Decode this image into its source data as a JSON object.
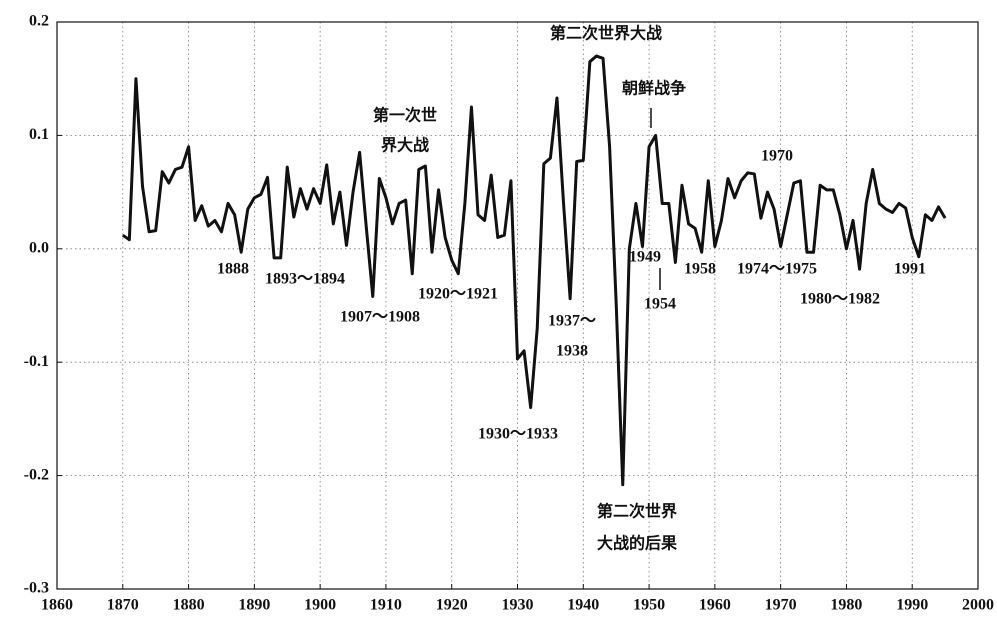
{
  "chart_data": {
    "type": "line",
    "x": [
      1870,
      1871,
      1872,
      1873,
      1874,
      1875,
      1876,
      1877,
      1878,
      1879,
      1880,
      1881,
      1882,
      1883,
      1884,
      1885,
      1886,
      1887,
      1888,
      1889,
      1890,
      1891,
      1892,
      1893,
      1894,
      1895,
      1896,
      1897,
      1898,
      1899,
      1900,
      1901,
      1902,
      1903,
      1904,
      1905,
      1906,
      1907,
      1908,
      1909,
      1910,
      1911,
      1912,
      1913,
      1914,
      1915,
      1916,
      1917,
      1918,
      1919,
      1920,
      1921,
      1922,
      1923,
      1924,
      1925,
      1926,
      1927,
      1928,
      1929,
      1930,
      1931,
      1932,
      1933,
      1934,
      1935,
      1936,
      1937,
      1938,
      1939,
      1940,
      1941,
      1942,
      1943,
      1944,
      1945,
      1946,
      1947,
      1948,
      1949,
      1950,
      1951,
      1952,
      1953,
      1954,
      1955,
      1956,
      1957,
      1958,
      1959,
      1960,
      1961,
      1962,
      1963,
      1964,
      1965,
      1966,
      1967,
      1968,
      1969,
      1970,
      1971,
      1972,
      1973,
      1974,
      1975,
      1976,
      1977,
      1978,
      1979,
      1980,
      1981,
      1982,
      1983,
      1984,
      1985,
      1986,
      1987,
      1988,
      1989,
      1990,
      1991,
      1992,
      1993,
      1994,
      1995
    ],
    "series": [
      {
        "color": "#111111",
        "values": [
          0.012,
          0.008,
          0.15,
          0.055,
          0.015,
          0.016,
          0.068,
          0.058,
          0.07,
          0.072,
          0.09,
          0.025,
          0.038,
          0.02,
          0.025,
          0.015,
          0.04,
          0.03,
          -0.003,
          0.035,
          0.045,
          0.048,
          0.063,
          -0.008,
          -0.008,
          0.072,
          0.028,
          0.053,
          0.035,
          0.053,
          0.04,
          0.074,
          0.022,
          0.05,
          0.003,
          0.05,
          0.085,
          0.02,
          -0.042,
          0.062,
          0.045,
          0.022,
          0.04,
          0.043,
          -0.022,
          0.07,
          0.073,
          -0.003,
          0.052,
          0.01,
          -0.01,
          -0.022,
          0.04,
          0.125,
          0.03,
          0.025,
          0.065,
          0.01,
          0.012,
          0.06,
          -0.097,
          -0.09,
          -0.14,
          -0.07,
          0.075,
          0.08,
          0.133,
          0.04,
          -0.044,
          0.077,
          0.078,
          0.165,
          0.17,
          0.168,
          0.09,
          -0.048,
          -0.208,
          0.0,
          0.04,
          0.002,
          0.09,
          0.1,
          0.04,
          0.04,
          -0.012,
          0.056,
          0.022,
          0.018,
          -0.003,
          0.06,
          0.002,
          0.025,
          0.062,
          0.045,
          0.06,
          0.067,
          0.066,
          0.027,
          0.05,
          0.035,
          0.002,
          0.03,
          0.058,
          0.06,
          -0.003,
          -0.003,
          0.056,
          0.052,
          0.052,
          0.03,
          0.0,
          0.025,
          -0.018,
          0.04,
          0.07,
          0.04,
          0.035,
          0.032,
          0.04,
          0.036,
          0.01,
          -0.007,
          0.03,
          0.025,
          0.037,
          0.027
        ]
      }
    ],
    "xlim": [
      1860,
      2000
    ],
    "xticks": [
      1860,
      1870,
      1880,
      1890,
      1900,
      1910,
      1920,
      1930,
      1940,
      1950,
      1960,
      1970,
      1980,
      1990,
      2000
    ],
    "ylim": [
      -0.3,
      0.2
    ],
    "yticks": [
      -0.3,
      -0.2,
      -0.1,
      {
        "value": 0,
        "label": "0.0"
      },
      0.1,
      0.2
    ],
    "grid": true,
    "annotations": [
      "第二次世界大战",
      "朝鲜战争",
      "第一次世",
      "界大战",
      "1970",
      "1888",
      "1893～1894",
      "1907～1908",
      "1920～1921",
      "1937～",
      "1938",
      "1930～1933",
      "第二次世界",
      "大战的后果",
      "1949",
      "1954",
      "1958",
      "1974～1975",
      "1980～1982",
      "1991"
    ]
  }
}
